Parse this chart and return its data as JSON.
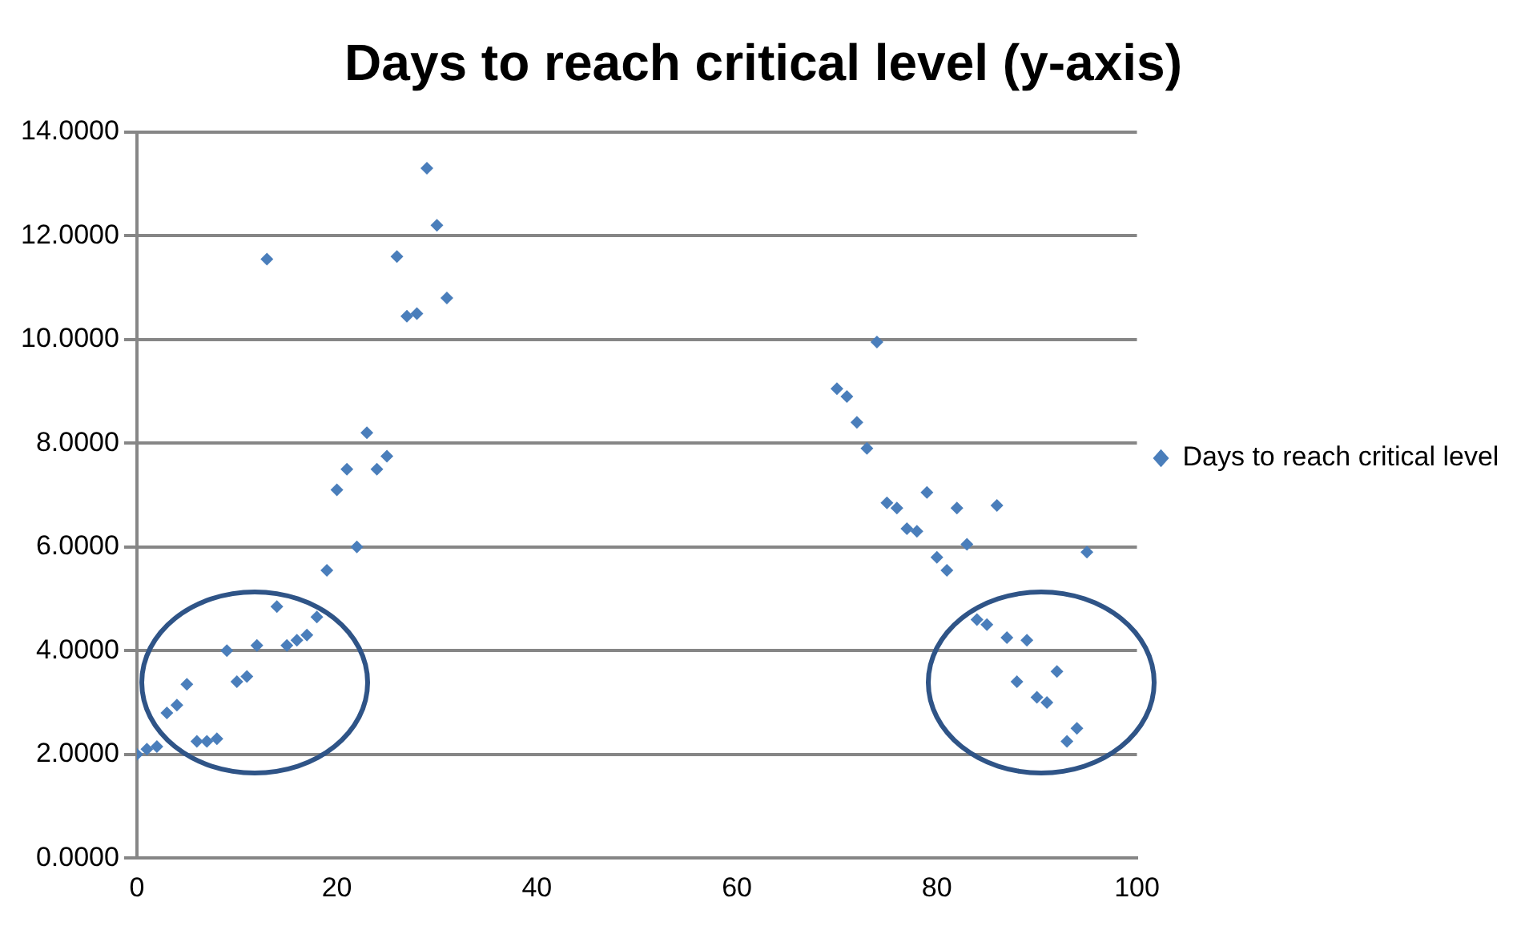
{
  "chart_data": {
    "type": "scatter",
    "title": "Days to reach critical level (y-axis)",
    "series": [
      {
        "name": "Days to reach critical level",
        "color": "#4a7ebb",
        "x": [
          0,
          1,
          2,
          3,
          4,
          5,
          6,
          7,
          8,
          9,
          10,
          11,
          12,
          13,
          14,
          15,
          16,
          17,
          18,
          19,
          20,
          21,
          22,
          23,
          24,
          25,
          26,
          27,
          28,
          29,
          30,
          31,
          70,
          71,
          72,
          73,
          74,
          75,
          76,
          77,
          78,
          79,
          80,
          81,
          82,
          83,
          84,
          85,
          86,
          87,
          88,
          89,
          90,
          91,
          92,
          93,
          94,
          95
        ],
        "values": [
          2.0,
          2.1,
          2.15,
          2.8,
          2.95,
          3.35,
          2.25,
          2.25,
          2.3,
          4.0,
          3.4,
          3.5,
          4.1,
          11.55,
          4.85,
          4.1,
          4.2,
          4.3,
          4.65,
          5.55,
          7.1,
          7.5,
          6.0,
          8.2,
          7.5,
          7.75,
          11.6,
          10.45,
          10.5,
          13.3,
          12.2,
          10.8,
          9.05,
          8.9,
          8.4,
          7.9,
          9.95,
          6.85,
          6.75,
          6.35,
          6.3,
          7.05,
          5.8,
          5.55,
          6.75,
          6.05,
          4.6,
          4.5,
          6.8,
          4.25,
          3.4,
          4.2,
          3.1,
          3.0,
          3.6,
          2.25,
          2.5,
          5.9
        ]
      }
    ],
    "xlim": [
      0,
      100
    ],
    "xticks": [
      0,
      20,
      40,
      60,
      80,
      100
    ],
    "ylim": [
      0,
      14
    ],
    "yticks": [
      {
        "value": 0,
        "label": "0.0000"
      },
      {
        "value": 2,
        "label": "2.0000"
      },
      {
        "value": 4,
        "label": "4.0000"
      },
      {
        "value": 6,
        "label": "6.0000"
      },
      {
        "value": 8,
        "label": "8.0000"
      },
      {
        "value": 10,
        "label": "10.0000"
      },
      {
        "value": 12,
        "label": "12.0000"
      },
      {
        "value": 14,
        "label": "14.0000"
      }
    ],
    "grid": "y",
    "legend": "right",
    "marker": "diamond"
  }
}
